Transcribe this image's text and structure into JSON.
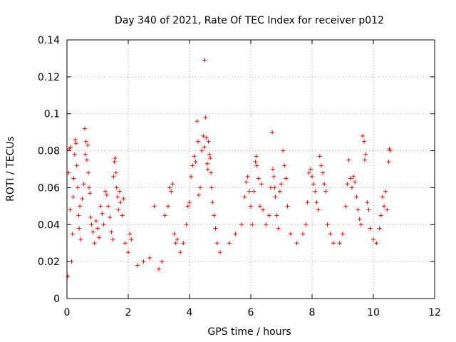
{
  "chart_data": {
    "type": "scatter",
    "title": "Day 340 of 2021, Rate Of TEC Index for receiver p012",
    "xlabel": "GPS time / hours",
    "ylabel": "ROTI / TECUs",
    "xlim": [
      0,
      12
    ],
    "ylim": [
      0,
      0.14
    ],
    "grid": true,
    "marker": "plus",
    "color": "#ff0000",
    "x_ticks": [
      0,
      2,
      4,
      6,
      8,
      10,
      12
    ],
    "x_tick_labels": [
      "0",
      "2",
      "4",
      "6",
      "8",
      "10",
      "12"
    ],
    "y_ticks": [
      0,
      0.02,
      0.04,
      0.06,
      0.08,
      0.1,
      0.12,
      0.14
    ],
    "y_tick_labels": [
      "0",
      "0.02",
      "0.04",
      "0.06",
      "0.08",
      "0.1",
      "0.12",
      "0.14"
    ],
    "series": [
      {
        "name": "ROTI",
        "points": [
          [
            0.03,
            0.012
          ],
          [
            0.05,
            0.068
          ],
          [
            0.08,
            0.081
          ],
          [
            0.1,
            0.048
          ],
          [
            0.12,
            0.082
          ],
          [
            0.15,
            0.02
          ],
          [
            0.18,
            0.035
          ],
          [
            0.2,
            0.055
          ],
          [
            0.22,
            0.065
          ],
          [
            0.25,
            0.078
          ],
          [
            0.27,
            0.086
          ],
          [
            0.3,
            0.084
          ],
          [
            0.32,
            0.072
          ],
          [
            0.35,
            0.06
          ],
          [
            0.38,
            0.045
          ],
          [
            0.4,
            0.038
          ],
          [
            0.42,
            0.05
          ],
          [
            0.45,
            0.032
          ],
          [
            0.5,
            0.054
          ],
          [
            0.55,
            0.062
          ],
          [
            0.58,
            0.092
          ],
          [
            0.6,
            0.078
          ],
          [
            0.62,
            0.085
          ],
          [
            0.65,
            0.075
          ],
          [
            0.68,
            0.083
          ],
          [
            0.7,
            0.068
          ],
          [
            0.72,
            0.06
          ],
          [
            0.75,
            0.057
          ],
          [
            0.78,
            0.044
          ],
          [
            0.8,
            0.04
          ],
          [
            0.85,
            0.036
          ],
          [
            0.9,
            0.03
          ],
          [
            0.95,
            0.042
          ],
          [
            1.0,
            0.038
          ],
          [
            1.05,
            0.033
          ],
          [
            1.1,
            0.05
          ],
          [
            1.15,
            0.046
          ],
          [
            1.2,
            0.04
          ],
          [
            1.25,
            0.058
          ],
          [
            1.3,
            0.056
          ],
          [
            1.35,
            0.05
          ],
          [
            1.4,
            0.044
          ],
          [
            1.45,
            0.036
          ],
          [
            1.5,
            0.032
          ],
          [
            1.52,
            0.066
          ],
          [
            1.55,
            0.074
          ],
          [
            1.57,
            0.076
          ],
          [
            1.6,
            0.068
          ],
          [
            1.62,
            0.06
          ],
          [
            1.65,
            0.055
          ],
          [
            1.68,
            0.048
          ],
          [
            1.72,
            0.058
          ],
          [
            1.75,
            0.052
          ],
          [
            1.8,
            0.045
          ],
          [
            1.85,
            0.054
          ],
          [
            1.9,
            0.03
          ],
          [
            2.0,
            0.025
          ],
          [
            2.05,
            0.035
          ],
          [
            2.1,
            0.032
          ],
          [
            2.3,
            0.018
          ],
          [
            2.5,
            0.02
          ],
          [
            2.7,
            0.022
          ],
          [
            2.85,
            0.05
          ],
          [
            3.0,
            0.016
          ],
          [
            3.1,
            0.02
          ],
          [
            3.2,
            0.045
          ],
          [
            3.3,
            0.05
          ],
          [
            3.35,
            0.06
          ],
          [
            3.4,
            0.058
          ],
          [
            3.45,
            0.062
          ],
          [
            3.5,
            0.035
          ],
          [
            3.55,
            0.03
          ],
          [
            3.6,
            0.032
          ],
          [
            3.7,
            0.025
          ],
          [
            3.8,
            0.03
          ],
          [
            3.9,
            0.04
          ],
          [
            3.95,
            0.05
          ],
          [
            4.0,
            0.052
          ],
          [
            4.05,
            0.066
          ],
          [
            4.1,
            0.072
          ],
          [
            4.15,
            0.077
          ],
          [
            4.2,
            0.074
          ],
          [
            4.25,
            0.096
          ],
          [
            4.28,
            0.085
          ],
          [
            4.3,
            0.056
          ],
          [
            4.35,
            0.06
          ],
          [
            4.4,
            0.08
          ],
          [
            4.45,
            0.088
          ],
          [
            4.48,
            0.082
          ],
          [
            4.5,
            0.129
          ],
          [
            4.52,
            0.098
          ],
          [
            4.55,
            0.087
          ],
          [
            4.58,
            0.073
          ],
          [
            4.6,
            0.07
          ],
          [
            4.62,
            0.085
          ],
          [
            4.65,
            0.078
          ],
          [
            4.68,
            0.076
          ],
          [
            4.7,
            0.068
          ],
          [
            4.72,
            0.06
          ],
          [
            4.75,
            0.052
          ],
          [
            4.8,
            0.045
          ],
          [
            4.85,
            0.038
          ],
          [
            4.9,
            0.03
          ],
          [
            5.0,
            0.025
          ],
          [
            5.3,
            0.03
          ],
          [
            5.5,
            0.035
          ],
          [
            5.7,
            0.04
          ],
          [
            5.8,
            0.055
          ],
          [
            5.85,
            0.063
          ],
          [
            5.9,
            0.066
          ],
          [
            5.95,
            0.058
          ],
          [
            6.0,
            0.05
          ],
          [
            6.05,
            0.04
          ],
          [
            6.1,
            0.058
          ],
          [
            6.15,
            0.074
          ],
          [
            6.18,
            0.077
          ],
          [
            6.2,
            0.072
          ],
          [
            6.25,
            0.065
          ],
          [
            6.3,
            0.05
          ],
          [
            6.35,
            0.062
          ],
          [
            6.4,
            0.048
          ],
          [
            6.5,
            0.04
          ],
          [
            6.6,
            0.045
          ],
          [
            6.65,
            0.06
          ],
          [
            6.7,
            0.09
          ],
          [
            6.72,
            0.07
          ],
          [
            6.75,
            0.066
          ],
          [
            6.78,
            0.06
          ],
          [
            6.8,
            0.055
          ],
          [
            6.85,
            0.045
          ],
          [
            6.9,
            0.038
          ],
          [
            6.95,
            0.058
          ],
          [
            7.0,
            0.062
          ],
          [
            7.05,
            0.08
          ],
          [
            7.1,
            0.072
          ],
          [
            7.15,
            0.065
          ],
          [
            7.2,
            0.05
          ],
          [
            7.3,
            0.035
          ],
          [
            7.5,
            0.03
          ],
          [
            7.7,
            0.035
          ],
          [
            7.8,
            0.04
          ],
          [
            7.85,
            0.052
          ],
          [
            7.9,
            0.068
          ],
          [
            7.95,
            0.07
          ],
          [
            8.0,
            0.066
          ],
          [
            8.05,
            0.062
          ],
          [
            8.1,
            0.058
          ],
          [
            8.15,
            0.052
          ],
          [
            8.2,
            0.048
          ],
          [
            8.25,
            0.077
          ],
          [
            8.3,
            0.072
          ],
          [
            8.35,
            0.068
          ],
          [
            8.4,
            0.062
          ],
          [
            8.45,
            0.058
          ],
          [
            8.5,
            0.04
          ],
          [
            8.6,
            0.035
          ],
          [
            8.7,
            0.03
          ],
          [
            8.9,
            0.03
          ],
          [
            9.0,
            0.035
          ],
          [
            9.1,
            0.05
          ],
          [
            9.15,
            0.062
          ],
          [
            9.2,
            0.075
          ],
          [
            9.25,
            0.065
          ],
          [
            9.3,
            0.06
          ],
          [
            9.35,
            0.066
          ],
          [
            9.4,
            0.063
          ],
          [
            9.45,
            0.055
          ],
          [
            9.5,
            0.048
          ],
          [
            9.55,
            0.043
          ],
          [
            9.6,
            0.04
          ],
          [
            9.65,
            0.088
          ],
          [
            9.7,
            0.085
          ],
          [
            9.72,
            0.075
          ],
          [
            9.75,
            0.078
          ],
          [
            9.8,
            0.052
          ],
          [
            9.85,
            0.048
          ],
          [
            9.9,
            0.038
          ],
          [
            10.0,
            0.032
          ],
          [
            10.1,
            0.03
          ],
          [
            10.2,
            0.038
          ],
          [
            10.25,
            0.045
          ],
          [
            10.3,
            0.055
          ],
          [
            10.35,
            0.05
          ],
          [
            10.4,
            0.058
          ],
          [
            10.45,
            0.048
          ],
          [
            10.5,
            0.074
          ],
          [
            10.52,
            0.081
          ],
          [
            10.55,
            0.08
          ]
        ]
      }
    ]
  }
}
